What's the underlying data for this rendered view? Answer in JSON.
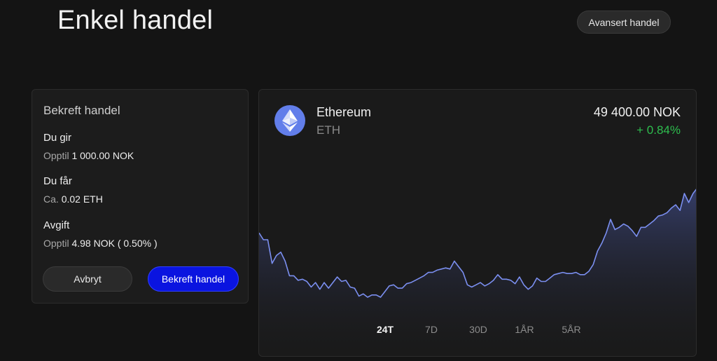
{
  "header": {
    "title": "Enkel handel",
    "advanced_button": "Avansert handel"
  },
  "confirm": {
    "title": "Bekreft handel",
    "give_label": "Du gir",
    "give_prefix": "Opptil",
    "give_value": "1 000.00 NOK",
    "get_label": "Du får",
    "get_prefix": "Ca.",
    "get_value": "0.02 ETH",
    "fee_label": "Avgift",
    "fee_prefix": "Opptil",
    "fee_value": "4.98 NOK ( 0.50% )",
    "cancel_button": "Avbryt",
    "confirm_button": "Bekreft handel"
  },
  "asset": {
    "name": "Ethereum",
    "ticker": "ETH",
    "price": "49 400.00 NOK",
    "change": "+ 0.84%",
    "logo_icon": "ethereum-icon"
  },
  "colors": {
    "accent": "#0a14e0",
    "positive": "#2ebd4e",
    "line": "#7b8ff0"
  },
  "range_tabs": [
    {
      "label": "24T",
      "active": true
    },
    {
      "label": "7D",
      "active": false
    },
    {
      "label": "30D",
      "active": false
    },
    {
      "label": "1ÅR",
      "active": false
    },
    {
      "label": "5ÅR",
      "active": false
    }
  ],
  "chart_data": {
    "type": "area",
    "series": [
      {
        "values": [
          51,
          45,
          45,
          24,
          31,
          34,
          26,
          13,
          13,
          9,
          10,
          8,
          3,
          7,
          1,
          7,
          2,
          7,
          12,
          8,
          9,
          3,
          2,
          -5,
          -3,
          -6,
          -4,
          -4,
          -6,
          -1,
          4,
          5,
          2,
          2,
          6,
          7,
          9,
          11,
          13,
          16,
          16,
          18,
          19,
          20,
          19,
          26,
          21,
          16,
          5,
          3,
          5,
          7,
          4,
          6,
          9,
          14,
          10,
          10,
          9,
          6,
          12,
          5,
          1,
          4,
          11,
          8,
          8,
          11,
          14,
          15,
          16,
          15,
          15,
          16,
          14,
          14,
          17,
          23,
          35,
          42,
          51,
          63,
          54,
          56,
          59,
          57,
          53,
          48,
          56,
          56,
          59,
          62,
          66,
          67,
          69,
          73,
          76,
          71,
          86,
          78,
          86,
          91
        ]
      }
    ]
  }
}
